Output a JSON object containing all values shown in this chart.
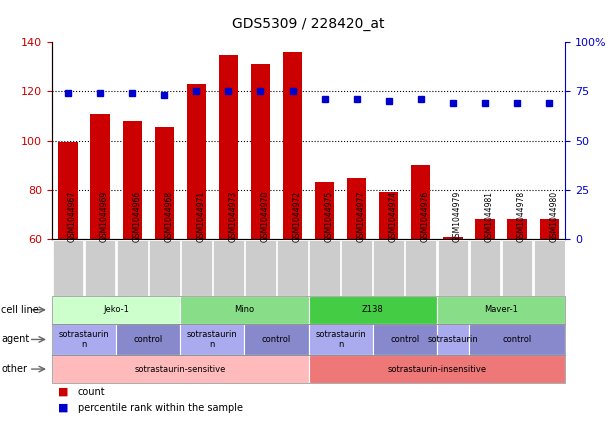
{
  "title": "GDS5309 / 228420_at",
  "samples": [
    "GSM1044967",
    "GSM1044969",
    "GSM1044966",
    "GSM1044968",
    "GSM1044971",
    "GSM1044973",
    "GSM1044970",
    "GSM1044972",
    "GSM1044975",
    "GSM1044977",
    "GSM1044974",
    "GSM1044976",
    "GSM1044979",
    "GSM1044981",
    "GSM1044978",
    "GSM1044980"
  ],
  "bar_values": [
    99.5,
    111,
    108,
    105.5,
    123,
    135,
    131,
    136,
    83,
    85,
    79,
    90,
    61,
    68,
    68,
    68
  ],
  "dot_values": [
    74,
    74,
    74,
    73,
    75,
    75,
    75,
    75,
    71,
    71,
    70,
    71,
    69,
    69,
    69,
    69
  ],
  "ylim_left": [
    60,
    140
  ],
  "ylim_right": [
    0,
    100
  ],
  "yticks_left": [
    60,
    80,
    100,
    120,
    140
  ],
  "yticks_right": [
    0,
    25,
    50,
    75,
    100
  ],
  "ytick_labels_right": [
    "0",
    "25",
    "50",
    "75",
    "100%"
  ],
  "bar_color": "#cc0000",
  "dot_color": "#0000cc",
  "cell_line_groups": [
    {
      "label": "Jeko-1",
      "start": 0,
      "end": 4,
      "color": "#ccffcc"
    },
    {
      "label": "Mino",
      "start": 4,
      "end": 8,
      "color": "#88dd88"
    },
    {
      "label": "Z138",
      "start": 8,
      "end": 12,
      "color": "#44cc44"
    },
    {
      "label": "Maver-1",
      "start": 12,
      "end": 16,
      "color": "#88dd88"
    }
  ],
  "agent_groups": [
    {
      "label": "sotrastaurin\nn",
      "start": 0,
      "end": 2,
      "color": "#aaaaee"
    },
    {
      "label": "control",
      "start": 2,
      "end": 4,
      "color": "#8888cc"
    },
    {
      "label": "sotrastaurin\nn",
      "start": 4,
      "end": 6,
      "color": "#aaaaee"
    },
    {
      "label": "control",
      "start": 6,
      "end": 8,
      "color": "#8888cc"
    },
    {
      "label": "sotrastaurin\nn",
      "start": 8,
      "end": 10,
      "color": "#aaaaee"
    },
    {
      "label": "control",
      "start": 10,
      "end": 12,
      "color": "#8888cc"
    },
    {
      "label": "sotrastaurin",
      "start": 12,
      "end": 13,
      "color": "#aaaaee"
    },
    {
      "label": "control",
      "start": 13,
      "end": 16,
      "color": "#8888cc"
    }
  ],
  "other_groups": [
    {
      "label": "sotrastaurin-sensitive",
      "start": 0,
      "end": 8,
      "color": "#ffbbbb"
    },
    {
      "label": "sotrastaurin-insensitive",
      "start": 8,
      "end": 16,
      "color": "#ee7777"
    }
  ],
  "legend_items": [
    {
      "color": "#cc0000",
      "label": "count"
    },
    {
      "color": "#0000cc",
      "label": "percentile rank within the sample"
    }
  ],
  "xtick_bg_color": "#cccccc",
  "chart_bg_color": "#ffffff"
}
